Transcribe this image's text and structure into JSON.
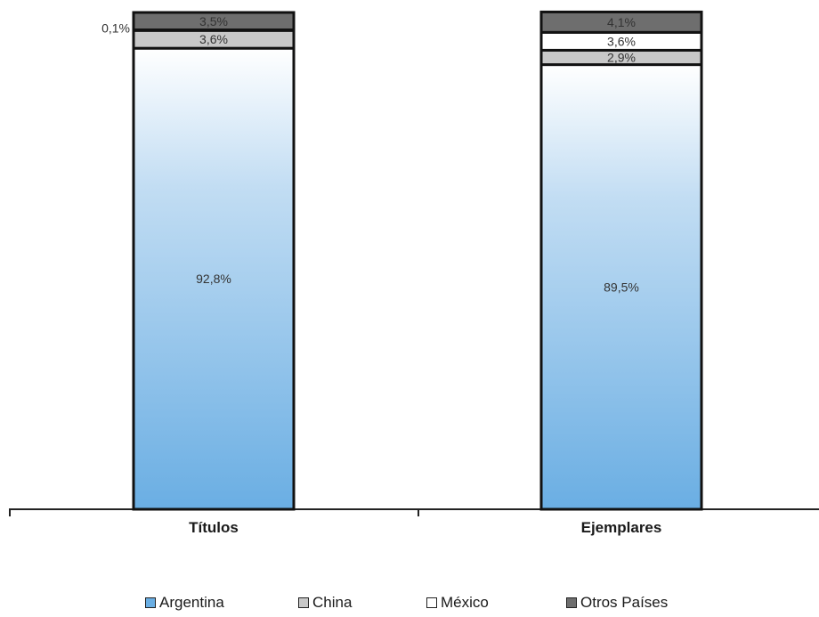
{
  "chart_data": {
    "type": "bar",
    "stacked": true,
    "percent": true,
    "categories": [
      "Títulos",
      "Ejemplares"
    ],
    "series": [
      {
        "name": "Argentina",
        "values": [
          92.8,
          89.5
        ],
        "color": "#6aaee3",
        "labels": [
          "92,8%",
          "89,5%"
        ]
      },
      {
        "name": "China",
        "values": [
          3.6,
          2.9
        ],
        "color": "#c8c8c8",
        "labels": [
          "3,6%",
          "2,9%"
        ]
      },
      {
        "name": "México",
        "values": [
          0.1,
          3.6
        ],
        "color": "#ffffff",
        "labels": [
          "0,1%",
          "3,6%"
        ]
      },
      {
        "name": "Otros Países",
        "values": [
          3.5,
          4.1
        ],
        "color": "#6e6e6e",
        "labels": [
          "3,5%",
          "4,1%"
        ]
      }
    ],
    "ylim": [
      0,
      100
    ],
    "grid": false,
    "legend_position": "bottom"
  },
  "legend": {
    "items": [
      {
        "label": "Argentina",
        "color": "#6aaee3"
      },
      {
        "label": "China",
        "color": "#c8c8c8"
      },
      {
        "label": "México",
        "color": "#ffffff"
      },
      {
        "label": "Otros Países",
        "color": "#6e6e6e"
      }
    ]
  }
}
